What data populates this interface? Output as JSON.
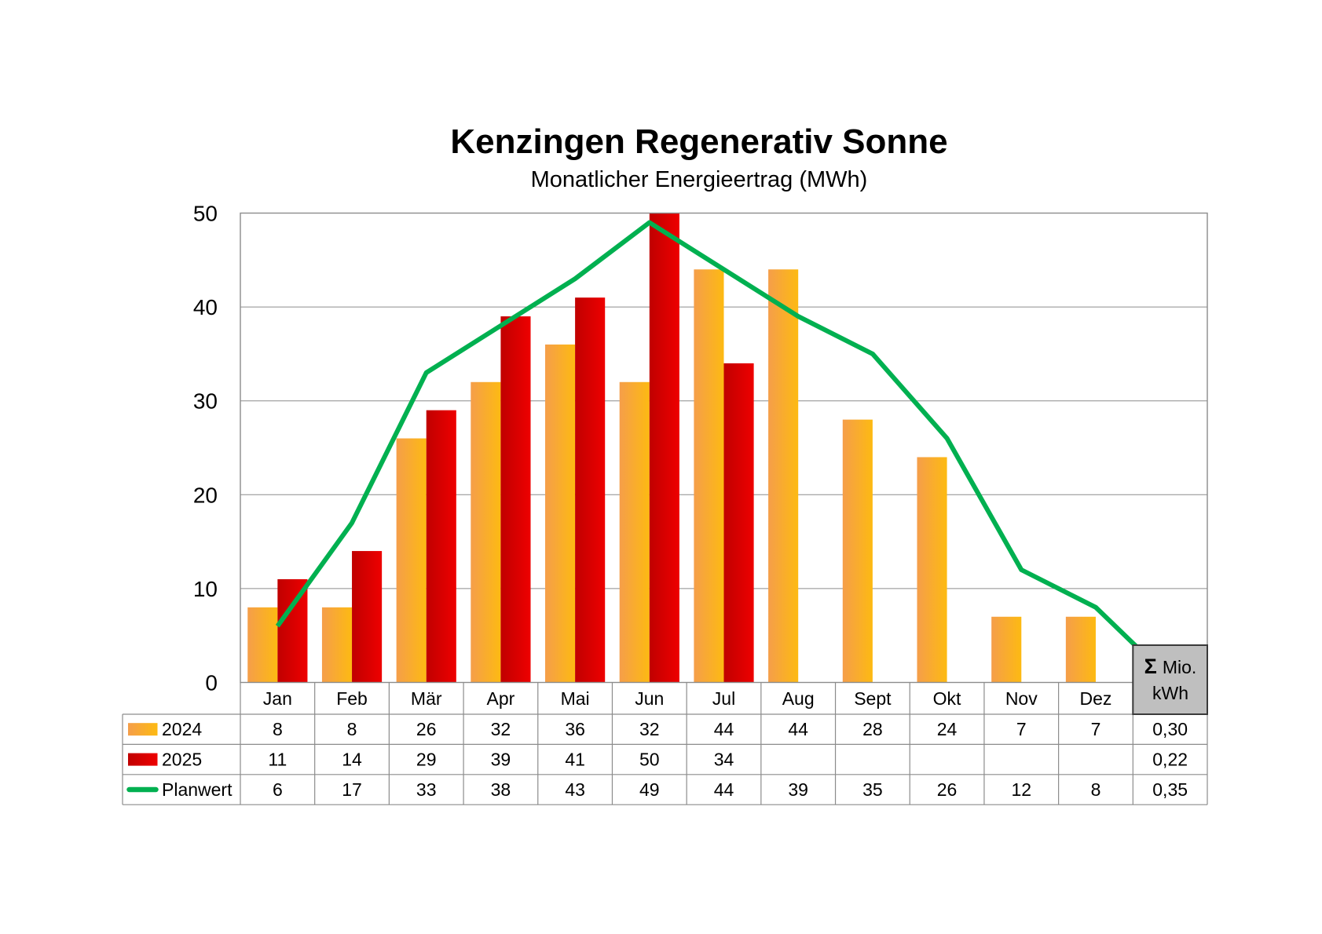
{
  "chart_data": {
    "type": "bar",
    "title": "Kenzingen Regenerativ Sonne",
    "subtitle": "Monatlicher Energieertrag (MWh)",
    "categories": [
      "Jan",
      "Feb",
      "Mär",
      "Apr",
      "Mai",
      "Jun",
      "Jul",
      "Aug",
      "Sept",
      "Okt",
      "Nov",
      "Dez"
    ],
    "ylim": [
      0,
      50
    ],
    "yticks": [
      0,
      10,
      20,
      30,
      40,
      50
    ],
    "grid": true,
    "legend": "bottom",
    "series": [
      {
        "name": "2024",
        "type": "bar",
        "gradient": [
          "#F59E4A",
          "#FDBA12"
        ],
        "values": [
          8,
          8,
          26,
          32,
          36,
          32,
          44,
          44,
          28,
          24,
          7,
          7
        ],
        "total": "0,30"
      },
      {
        "name": "2025",
        "type": "bar",
        "gradient": [
          "#C00000",
          "#EE0000"
        ],
        "values": [
          11,
          14,
          29,
          39,
          41,
          50,
          34,
          null,
          null,
          null,
          null,
          null
        ],
        "total": "0,22"
      },
      {
        "name": "Planwert",
        "type": "line",
        "color": "#00B050",
        "values": [
          6,
          17,
          33,
          38,
          43,
          49,
          44,
          39,
          35,
          26,
          12,
          8
        ],
        "total": "0,35"
      }
    ],
    "total_column": {
      "symbol": "Σ",
      "unit_line1": "Mio.",
      "unit_line2": "kWh"
    }
  }
}
